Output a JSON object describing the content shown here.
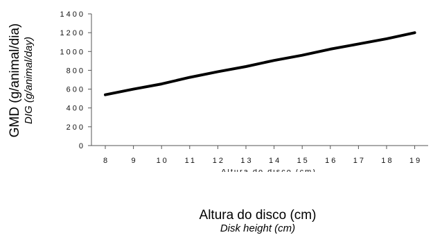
{
  "chart_data": {
    "type": "line",
    "x": [
      8,
      9,
      10,
      11,
      12,
      13,
      14,
      15,
      16,
      17,
      18,
      19
    ],
    "categories": [
      "8",
      "9",
      "10",
      "11",
      "12",
      "13",
      "14",
      "15",
      "16",
      "17",
      "18",
      "19"
    ],
    "series": [
      {
        "values": [
          540,
          600,
          655,
          725,
          785,
          840,
          905,
          960,
          1025,
          1080,
          1135,
          1200
        ]
      }
    ],
    "ylim": [
      0,
      1400
    ],
    "yticks": [
      "0",
      "200",
      "400",
      "600",
      "800",
      "1000",
      "1200",
      "1400"
    ],
    "ylabel": "GMD (g/animal/dia)",
    "ylabel_sub": "DIG (g/animal/day)",
    "xlabel": "Altura do disco (cm)",
    "xlabel_sub": "Disk height (cm)",
    "x_garbled_label": "Altura do disco (cm)",
    "grid": false,
    "line_color": "#000000"
  }
}
